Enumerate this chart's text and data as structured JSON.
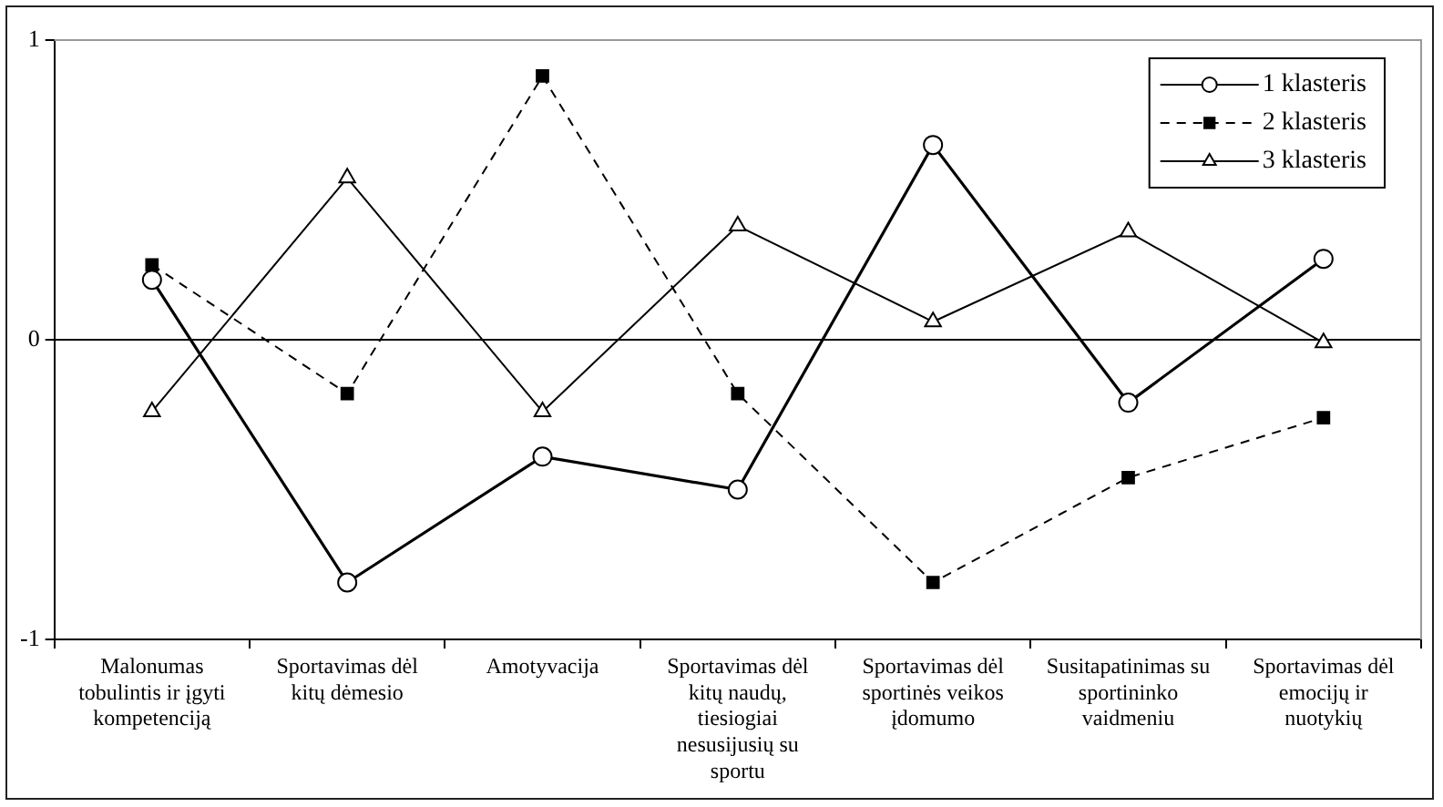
{
  "chart_data": {
    "type": "line",
    "categories": [
      "Malonumas tobulintis ir įgyti kompetenciją",
      "Sportavimas dėl kitų dėmesio",
      "Amotyvacija",
      "Sportavimas dėl kitų naudų, tiesiogiai nesusijusių su sportu",
      "Sportavimas dėl sportinės veikos įdomumo",
      "Susitapatinimas su sportininko vaidmeniu",
      "Sportavimas dėl emocijų ir nuotykių"
    ],
    "series": [
      {
        "name": "1 klasteris",
        "color": "#000000",
        "marker": "circle",
        "line_style": "solid",
        "values": [
          0.2,
          -0.81,
          -0.39,
          -0.5,
          0.65,
          -0.21,
          0.27
        ]
      },
      {
        "name": "2 klasteris",
        "color": "#000000",
        "marker": "square",
        "line_style": "dashed",
        "values": [
          0.25,
          -0.18,
          0.88,
          -0.18,
          -0.81,
          -0.46,
          -0.26
        ]
      },
      {
        "name": "3 klasteris",
        "color": "#000000",
        "marker": "triangle",
        "line_style": "solid",
        "values": [
          -0.24,
          0.54,
          -0.24,
          0.38,
          0.06,
          0.36,
          -0.01
        ]
      }
    ],
    "ylim": [
      -1,
      1
    ],
    "yticks": [
      -1,
      0,
      1
    ],
    "grid": false,
    "legend": "top right",
    "ref_lines": [
      {
        "axis": "y",
        "value": 0,
        "color": "#000000"
      }
    ]
  }
}
